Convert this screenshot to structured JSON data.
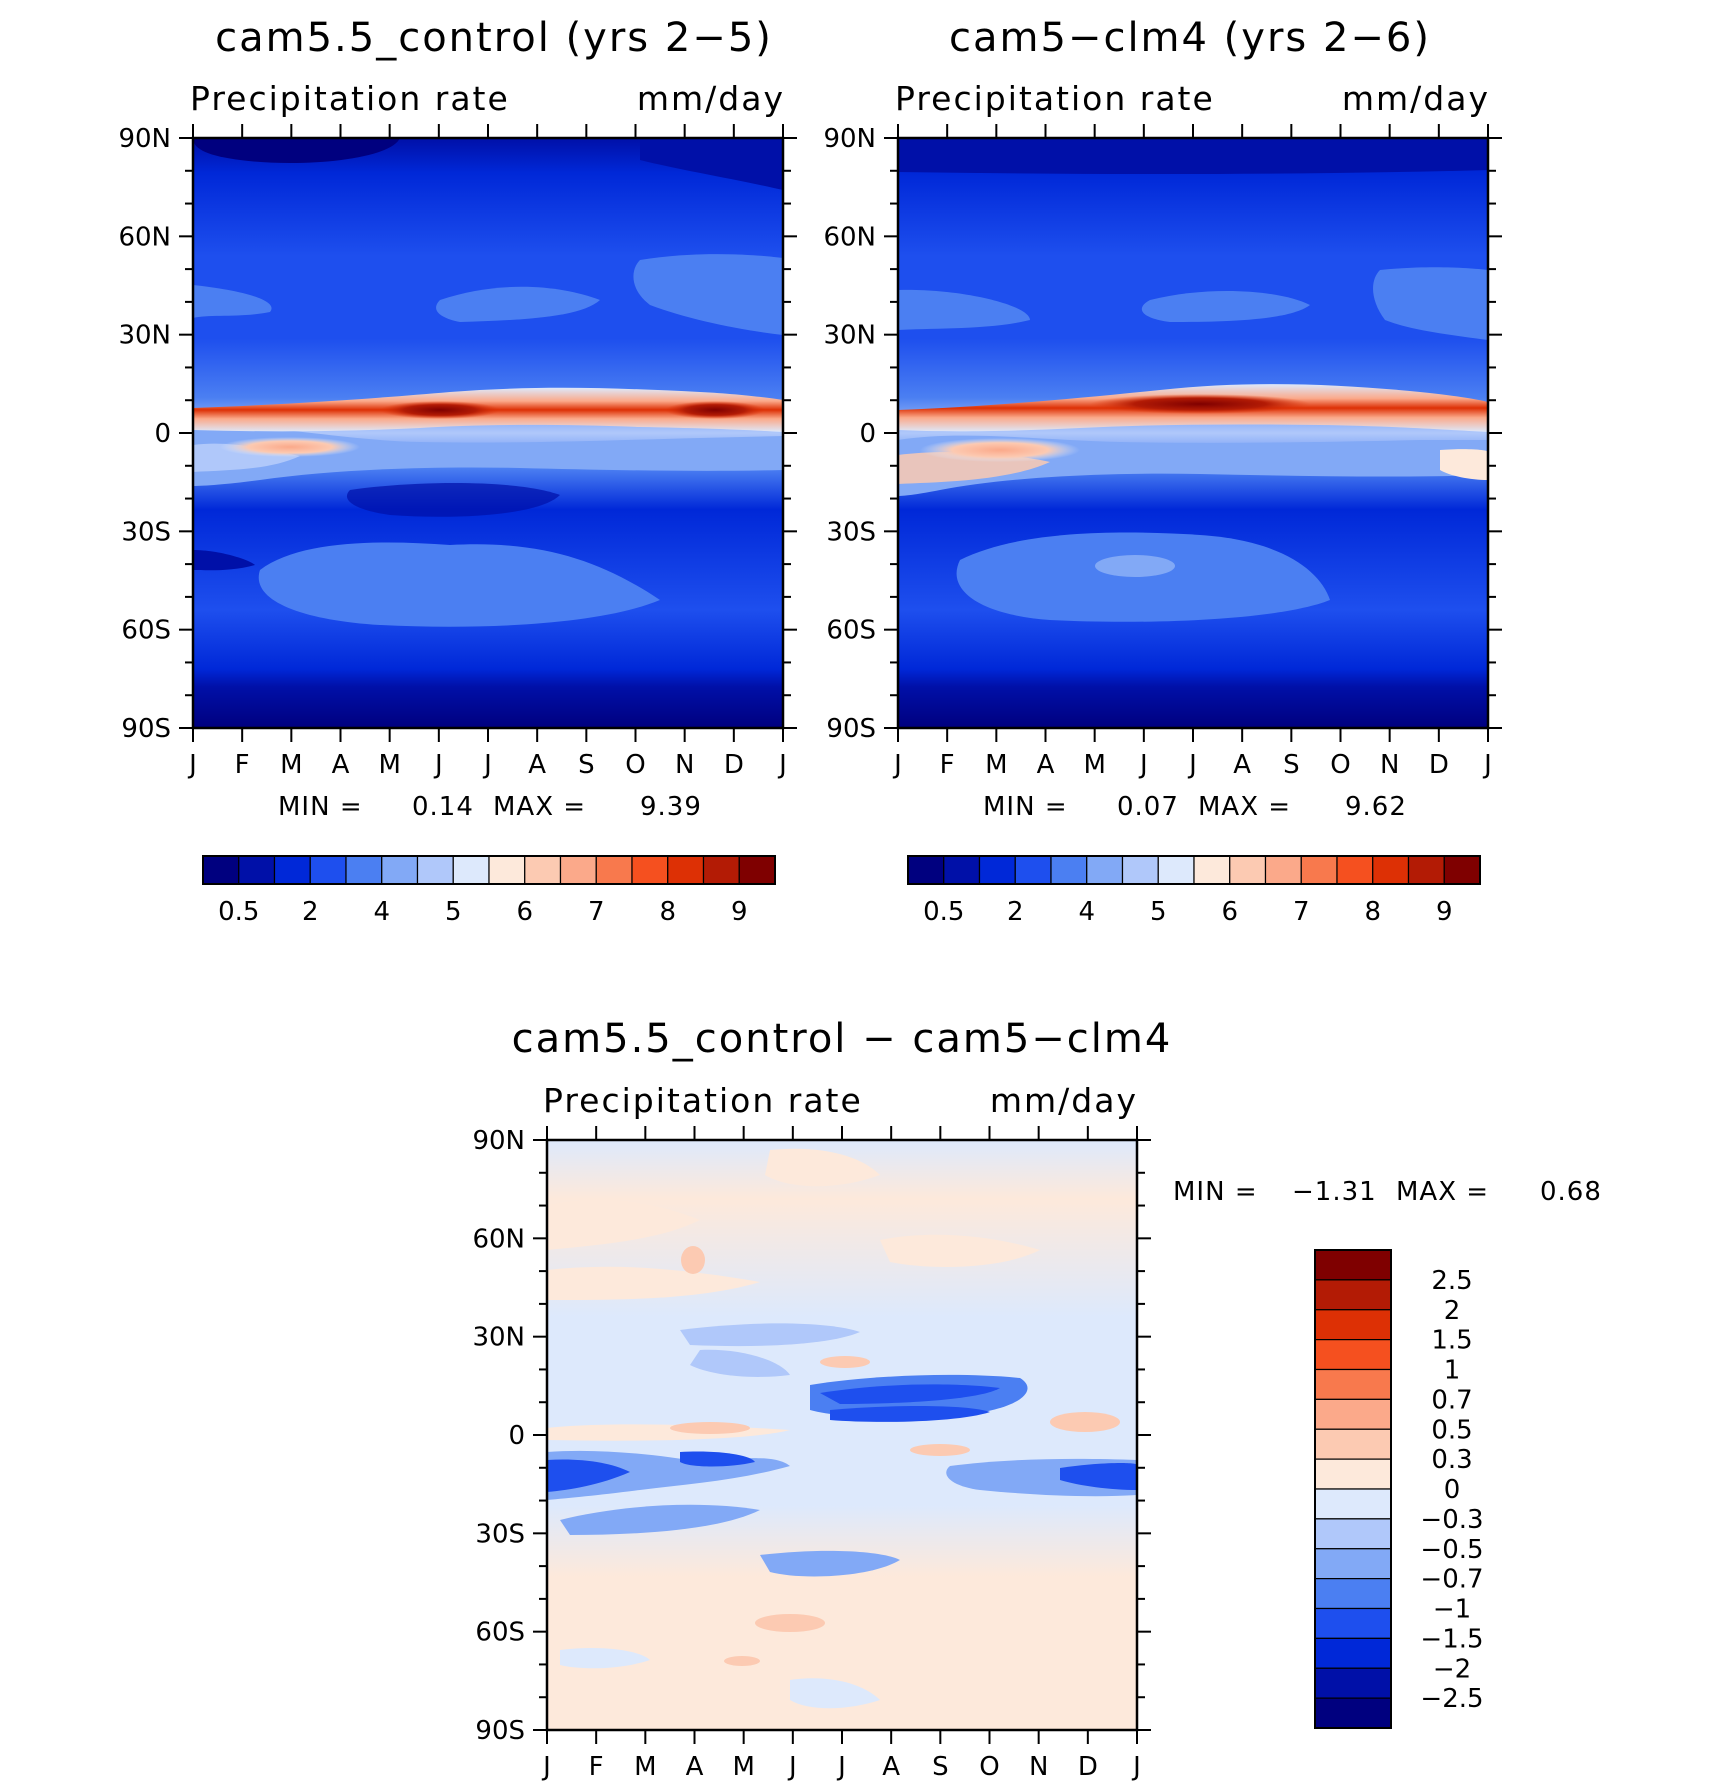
{
  "chart_data": [
    {
      "type": "heatmap",
      "title": "cam5.5_control (yrs 2−5)",
      "left_subtitle": "Precipitation rate",
      "right_subtitle": "mm/day",
      "x_ticks": [
        "J",
        "F",
        "M",
        "A",
        "M",
        "J",
        "J",
        "A",
        "S",
        "O",
        "N",
        "D",
        "J"
      ],
      "y_ticks": [
        "90N",
        "60N",
        "30N",
        "0",
        "30S",
        "60S",
        "90S"
      ],
      "ylim": [
        -90,
        90
      ],
      "stats": {
        "min_label": "MIN =",
        "min": "0.14",
        "max_label": "MAX =",
        "max": "9.39"
      },
      "colorbar": {
        "colors": [
          "#00007f",
          "#0010a8",
          "#0028d8",
          "#1e4fee",
          "#4b7ff2",
          "#82a9f6",
          "#b0c8fa",
          "#dde9fc",
          "#fde9db",
          "#fccab2",
          "#fba98a",
          "#f8794d",
          "#f5501f",
          "#dd3005",
          "#b31b05",
          "#7f0000"
        ],
        "labels": [
          "0.5",
          "2",
          "4",
          "5",
          "6",
          "7",
          "8",
          "9"
        ]
      },
      "features": [
        {
          "desc": "ITCZ maximum band",
          "lat": 5,
          "month_peak": "Jun",
          "value": 9.39
        },
        {
          "desc": "south equatorial secondary band",
          "lat": -4,
          "month_peak": "Mar",
          "value": 6.5
        },
        {
          "desc": "polar minimum",
          "lat": -85,
          "value": 0.14
        }
      ]
    },
    {
      "type": "heatmap",
      "title": "cam5−clm4 (yrs 2−6)",
      "left_subtitle": "Precipitation rate",
      "right_subtitle": "mm/day",
      "x_ticks": [
        "J",
        "F",
        "M",
        "A",
        "M",
        "J",
        "J",
        "A",
        "S",
        "O",
        "N",
        "D",
        "J"
      ],
      "y_ticks": [
        "90N",
        "60N",
        "30N",
        "0",
        "30S",
        "60S",
        "90S"
      ],
      "ylim": [
        -90,
        90
      ],
      "stats": {
        "min_label": "MIN =",
        "min": "0.07",
        "max_label": "MAX =",
        "max": "9.62"
      },
      "colorbar": {
        "colors": [
          "#00007f",
          "#0010a8",
          "#0028d8",
          "#1e4fee",
          "#4b7ff2",
          "#82a9f6",
          "#b0c8fa",
          "#dde9fc",
          "#fde9db",
          "#fccab2",
          "#fba98a",
          "#f8794d",
          "#f5501f",
          "#dd3005",
          "#b31b05",
          "#7f0000"
        ],
        "labels": [
          "0.5",
          "2",
          "4",
          "5",
          "6",
          "7",
          "8",
          "9"
        ]
      },
      "features": [
        {
          "desc": "ITCZ maximum band",
          "lat": 7,
          "month_peak": "Jul",
          "value": 9.62
        },
        {
          "desc": "south equatorial secondary band",
          "lat": -5,
          "month_peak": "Mar",
          "value": 6.5
        },
        {
          "desc": "polar minimum",
          "lat": -85,
          "value": 0.07
        }
      ]
    },
    {
      "type": "heatmap",
      "title": "cam5.5_control − cam5−clm4",
      "left_subtitle": "Precipitation rate",
      "right_subtitle": "mm/day",
      "x_ticks": [
        "J",
        "F",
        "M",
        "A",
        "M",
        "J",
        "J",
        "A",
        "S",
        "O",
        "N",
        "D",
        "J"
      ],
      "y_ticks": [
        "90N",
        "60N",
        "30N",
        "0",
        "30S",
        "60S",
        "90S"
      ],
      "ylim": [
        -90,
        90
      ],
      "stats": {
        "min_label": "MIN =",
        "min": "−1.31",
        "max_label": "MAX =",
        "max": "0.68"
      },
      "colorbar": {
        "colors": [
          "#00007f",
          "#0010a8",
          "#0028d8",
          "#1e4fee",
          "#4b7ff2",
          "#82a9f6",
          "#b0c8fa",
          "#dde9fc",
          "#fde9db",
          "#fccab2",
          "#fba98a",
          "#f8794d",
          "#f5501f",
          "#dd3005",
          "#b31b05",
          "#7f0000"
        ],
        "labels": [
          "−2.5",
          "−2",
          "−1.5",
          "−1",
          "−0.7",
          "−0.5",
          "−0.3",
          "0",
          "0.3",
          "0.5",
          "0.7",
          "1",
          "1.5",
          "2",
          "2.5"
        ]
      },
      "features": [
        {
          "desc": "negative difference band north of equator",
          "lat": 10,
          "month_peak": "Aug",
          "value": -1.31
        },
        {
          "desc": "negative difference band south of equator",
          "lat": -8,
          "month_peak": "Jan",
          "value": -1.1
        },
        {
          "desc": "positive difference patch",
          "lat": 3,
          "month_peak": "Dec",
          "value": 0.68
        }
      ]
    }
  ]
}
